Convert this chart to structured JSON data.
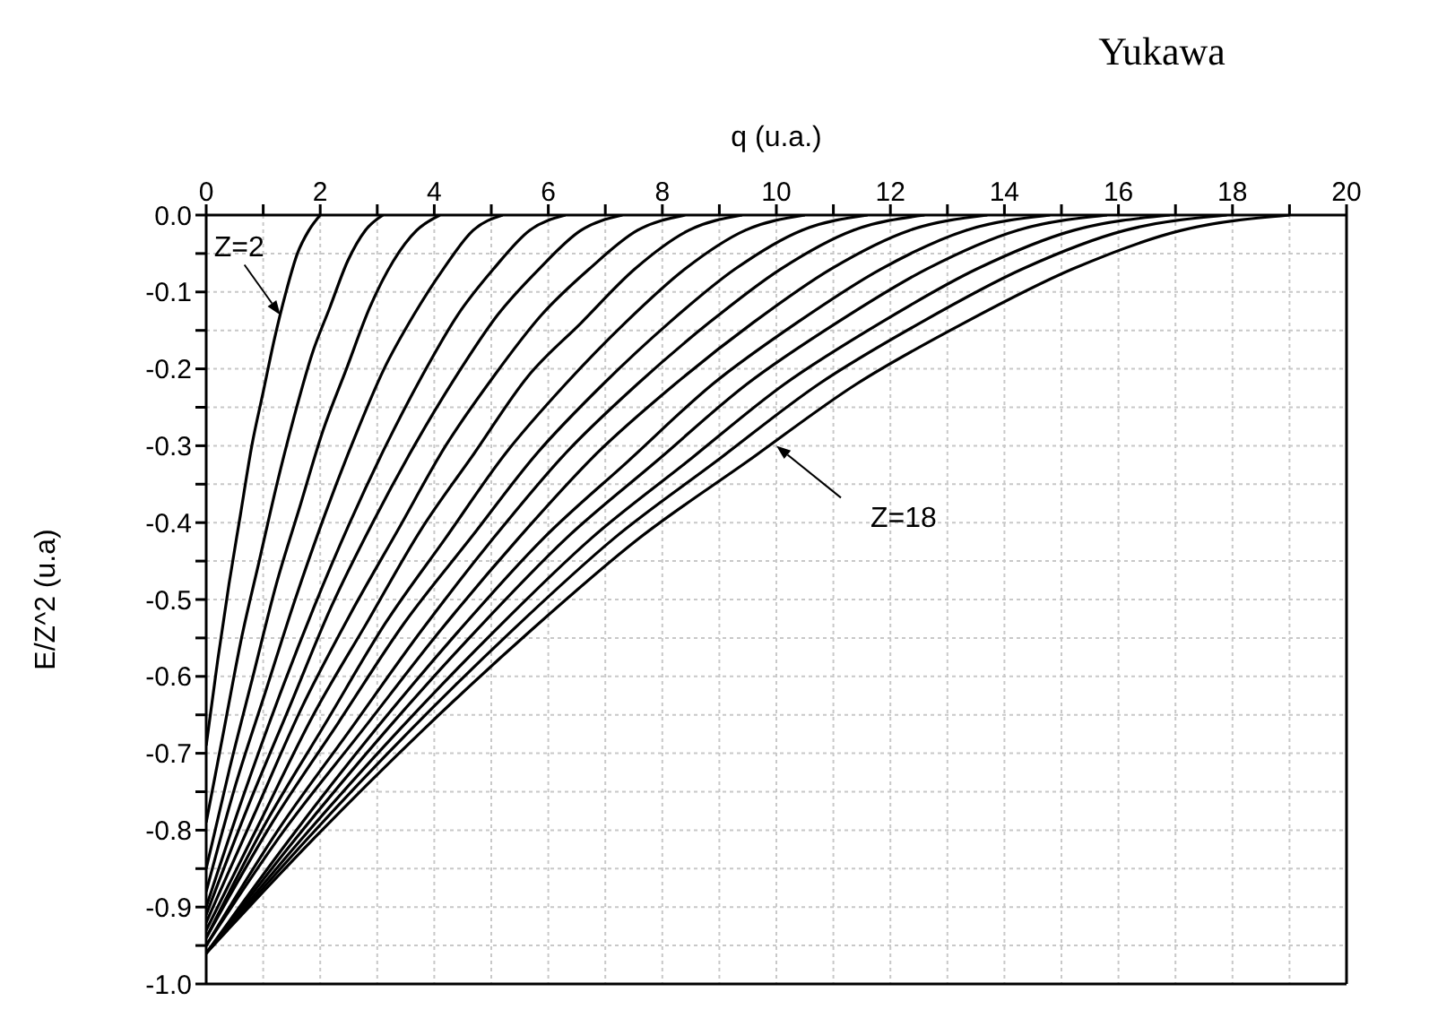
{
  "chart_data": {
    "type": "line",
    "title": "Yukawa",
    "xlabel": "q (u.a.)",
    "ylabel": "E/Z^2 (u.a)",
    "xlim": [
      0,
      20
    ],
    "xticks": [
      0,
      {
        "value": 1,
        "label": null
      },
      2,
      {
        "value": 3,
        "label": null
      },
      4,
      {
        "value": 5,
        "label": null
      },
      6,
      {
        "value": 7,
        "label": null
      },
      8,
      {
        "value": 9,
        "label": null
      },
      10,
      {
        "value": 11,
        "label": null
      },
      12,
      {
        "value": 13,
        "label": null
      },
      14,
      {
        "value": 15,
        "label": null
      },
      16,
      {
        "value": 17,
        "label": null
      },
      18,
      {
        "value": 19,
        "label": null
      },
      20
    ],
    "ylim": [
      -1,
      0
    ],
    "yticks": [
      {
        "value": 0,
        "label": "0.0"
      },
      {
        "value": -0.05,
        "label": null
      },
      -0.1,
      {
        "value": -0.15,
        "label": null
      },
      -0.2,
      {
        "value": -0.25,
        "label": null
      },
      -0.3,
      {
        "value": -0.35,
        "label": null
      },
      -0.4,
      {
        "value": -0.45,
        "label": null
      },
      -0.5,
      {
        "value": -0.55,
        "label": null
      },
      -0.6,
      {
        "value": -0.65,
        "label": null
      },
      -0.7,
      {
        "value": -0.75,
        "label": null
      },
      -0.8,
      {
        "value": -0.85,
        "label": null
      },
      -0.9,
      {
        "value": -0.95,
        "label": null
      },
      {
        "value": -1,
        "label": "-1.0"
      }
    ],
    "grid": true,
    "marker": "none",
    "line_style": "solid",
    "annotations": [
      {
        "text": "Z=2",
        "x": 1.3,
        "y": -0.13
      },
      {
        "text": "Z=18",
        "x": 10,
        "y": -0.3
      }
    ],
    "series": [
      {
        "color": "#000000",
        "x": [
          0,
          0.2,
          0.4,
          0.6,
          0.8,
          1,
          1.2,
          1.4,
          1.6,
          1.8,
          2
        ],
        "values": [
          -0.69,
          -0.58,
          -0.48,
          -0.39,
          -0.3,
          -0.23,
          -0.16,
          -0.1,
          -0.05,
          -0.02,
          0
        ]
      },
      {
        "color": "#000000",
        "x": [
          0,
          0.31,
          0.62,
          0.93,
          1.24,
          1.55,
          1.86,
          2.17,
          2.48,
          2.79,
          3.1
        ],
        "values": [
          -0.79,
          -0.67,
          -0.55,
          -0.45,
          -0.35,
          -0.26,
          -0.18,
          -0.12,
          -0.06,
          -0.02,
          0
        ]
      },
      {
        "color": "#000000",
        "x": [
          0,
          0.41,
          0.82,
          1.23,
          1.64,
          2.05,
          2.46,
          2.87,
          3.28,
          3.69,
          4.1
        ],
        "values": [
          -0.85,
          -0.72,
          -0.6,
          -0.48,
          -0.38,
          -0.28,
          -0.2,
          -0.12,
          -0.06,
          -0.02,
          0
        ]
      },
      {
        "color": "#000000",
        "x": [
          0,
          0.52,
          1.04,
          1.56,
          2.08,
          2.6,
          3.12,
          3.64,
          4.16,
          4.68,
          5.2
        ],
        "values": [
          -0.88,
          -0.74,
          -0.62,
          -0.5,
          -0.39,
          -0.29,
          -0.2,
          -0.13,
          -0.07,
          -0.02,
          0
        ]
      },
      {
        "color": "#000000",
        "x": [
          0,
          0.63,
          1.26,
          1.89,
          2.52,
          3.15,
          3.78,
          4.41,
          5.04,
          5.67,
          6.3
        ],
        "values": [
          -0.9,
          -0.76,
          -0.63,
          -0.51,
          -0.4,
          -0.3,
          -0.21,
          -0.13,
          -0.07,
          -0.02,
          0
        ]
      },
      {
        "color": "#000000",
        "x": [
          0,
          0.73,
          1.46,
          2.19,
          2.92,
          3.65,
          4.38,
          5.11,
          5.84,
          6.57,
          7.3
        ],
        "values": [
          -0.91,
          -0.77,
          -0.64,
          -0.51,
          -0.4,
          -0.3,
          -0.21,
          -0.13,
          -0.07,
          -0.02,
          0
        ]
      },
      {
        "color": "#000000",
        "x": [
          0,
          0.84,
          1.68,
          2.52,
          3.36,
          4.2,
          5.04,
          5.88,
          6.72,
          7.56,
          8.4
        ],
        "values": [
          -0.92,
          -0.78,
          -0.64,
          -0.52,
          -0.41,
          -0.3,
          -0.21,
          -0.13,
          -0.07,
          -0.02,
          0
        ]
      },
      {
        "color": "#000000",
        "x": [
          0,
          0.94,
          1.88,
          2.82,
          3.76,
          4.7,
          5.64,
          6.58,
          7.52,
          8.46,
          9.4
        ],
        "values": [
          -0.93,
          -0.79,
          -0.65,
          -0.53,
          -0.41,
          -0.31,
          -0.21,
          -0.14,
          -0.07,
          -0.02,
          0
        ]
      },
      {
        "color": "#000000",
        "x": [
          0,
          1.05,
          2.1,
          3.15,
          4.2,
          5.25,
          6.3,
          7.35,
          8.4,
          9.45,
          10.5
        ],
        "values": [
          -0.94,
          -0.79,
          -0.66,
          -0.53,
          -0.42,
          -0.31,
          -0.22,
          -0.14,
          -0.07,
          -0.02,
          0
        ]
      },
      {
        "color": "#000000",
        "x": [
          0,
          1.16,
          2.32,
          3.48,
          4.64,
          5.8,
          6.96,
          8.12,
          9.28,
          10.44,
          11.6
        ],
        "values": [
          -0.94,
          -0.79,
          -0.66,
          -0.53,
          -0.42,
          -0.31,
          -0.22,
          -0.14,
          -0.07,
          -0.02,
          0
        ]
      },
      {
        "color": "#000000",
        "x": [
          0,
          1.26,
          2.52,
          3.78,
          5.04,
          6.3,
          7.56,
          8.82,
          10.08,
          11.34,
          12.6
        ],
        "values": [
          -0.95,
          -0.8,
          -0.67,
          -0.54,
          -0.42,
          -0.31,
          -0.22,
          -0.14,
          -0.07,
          -0.02,
          0
        ]
      },
      {
        "color": "#000000",
        "x": [
          0,
          1.37,
          2.74,
          4.11,
          5.48,
          6.85,
          8.22,
          9.59,
          10.96,
          12.33,
          13.7
        ],
        "values": [
          -0.95,
          -0.8,
          -0.67,
          -0.54,
          -0.42,
          -0.31,
          -0.22,
          -0.14,
          -0.07,
          -0.02,
          0
        ]
      },
      {
        "color": "#000000",
        "x": [
          0,
          1.48,
          2.96,
          4.44,
          5.92,
          7.4,
          8.88,
          10.36,
          11.84,
          13.32,
          14.8
        ],
        "values": [
          -0.96,
          -0.81,
          -0.67,
          -0.54,
          -0.42,
          -0.32,
          -0.22,
          -0.14,
          -0.07,
          -0.02,
          0
        ]
      },
      {
        "color": "#000000",
        "x": [
          0,
          1.58,
          3.16,
          4.74,
          6.32,
          7.9,
          9.48,
          11.06,
          12.64,
          14.22,
          15.8
        ],
        "values": [
          -0.96,
          -0.81,
          -0.67,
          -0.54,
          -0.42,
          -0.32,
          -0.22,
          -0.14,
          -0.07,
          -0.02,
          0
        ]
      },
      {
        "color": "#000000",
        "x": [
          0,
          1.69,
          3.38,
          5.07,
          6.76,
          8.45,
          10.14,
          11.83,
          13.52,
          15.21,
          16.9
        ],
        "values": [
          -0.96,
          -0.81,
          -0.67,
          -0.54,
          -0.42,
          -0.32,
          -0.22,
          -0.14,
          -0.07,
          -0.02,
          0
        ]
      },
      {
        "color": "#000000",
        "x": [
          0,
          1.79,
          3.58,
          5.37,
          7.16,
          8.95,
          10.74,
          12.53,
          14.32,
          16.11,
          17.9
        ],
        "values": [
          -0.96,
          -0.81,
          -0.67,
          -0.54,
          -0.42,
          -0.32,
          -0.22,
          -0.14,
          -0.07,
          -0.02,
          0
        ]
      },
      {
        "color": "#000000",
        "x": [
          0,
          1.9,
          3.8,
          5.7,
          7.6,
          9.5,
          11.4,
          13.3,
          15.2,
          17.1,
          19
        ],
        "values": [
          -0.96,
          -0.81,
          -0.67,
          -0.54,
          -0.42,
          -0.32,
          -0.22,
          -0.14,
          -0.07,
          -0.02,
          0
        ]
      }
    ]
  }
}
